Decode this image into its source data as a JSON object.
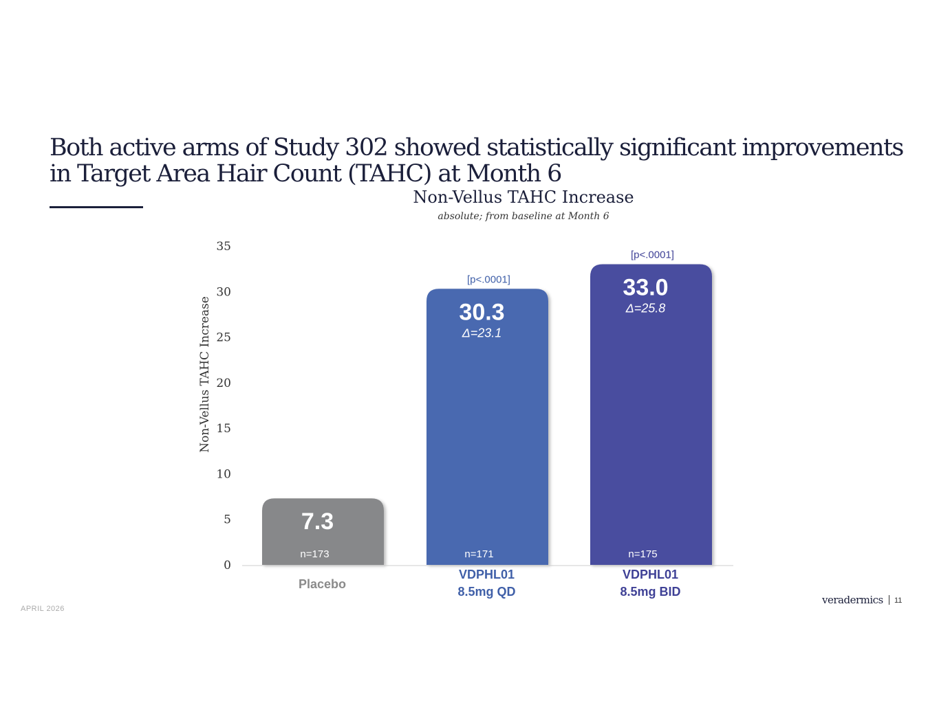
{
  "slide": {
    "title": "Both active arms of Study 302 showed statistically significant improvements in Target Area Hair Count (TAHC) at Month 6",
    "date": "APRIL 2026",
    "brand": "veradermics",
    "page_number": "11"
  },
  "chart_data": {
    "type": "bar",
    "title": "Non-Vellus TAHC Increase",
    "subtitle": "absolute; from baseline at Month 6",
    "xlabel": "",
    "ylabel": "Non-Vellus TAHC Increase",
    "ylim": [
      0,
      35
    ],
    "yticks": [
      0,
      5,
      10,
      15,
      20,
      25,
      30,
      35
    ],
    "grid": false,
    "categories": [
      {
        "line1": "Placebo",
        "line2": ""
      },
      {
        "line1": "VDPHL01",
        "line2": "8.5mg QD"
      },
      {
        "line1": "VDPHL01",
        "line2": "8.5mg BID"
      }
    ],
    "values": [
      7.3,
      30.3,
      33.0
    ],
    "value_labels": [
      "7.3",
      "30.3",
      "33.0"
    ],
    "deltas": [
      "",
      "Δ=23.1",
      "Δ=25.8"
    ],
    "p_values": [
      "",
      "[p<.0001]",
      "[p<.0001]"
    ],
    "n_labels": [
      "n=173",
      "n=171",
      "n=175"
    ],
    "colors": [
      "#87888a",
      "#4a69b0",
      "#4a4d9f"
    ],
    "label_colors": [
      "#8a8a8a",
      "#3f5fa8",
      "#3f4196"
    ]
  }
}
